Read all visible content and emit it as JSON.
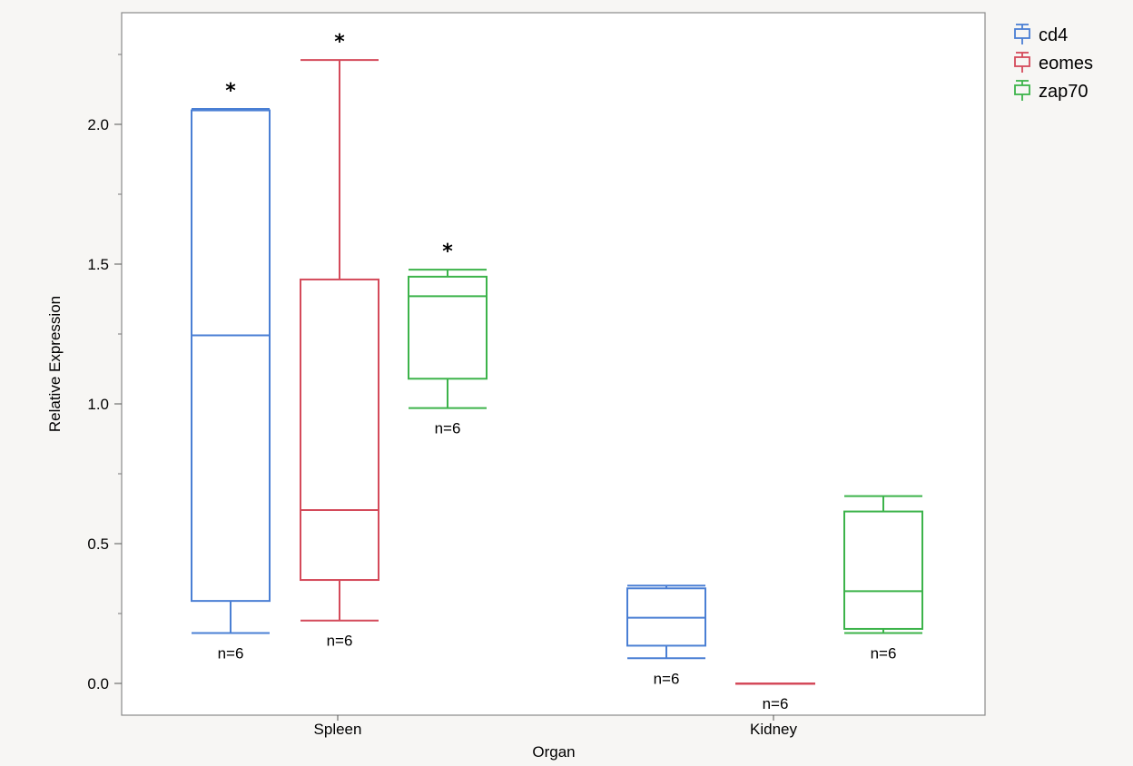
{
  "chart_data": {
    "type": "box",
    "xlabel": "Organ",
    "ylabel": "Relative Expression",
    "ylim": [
      -0.1,
      2.4
    ],
    "yticks": [
      0.0,
      0.5,
      1.0,
      1.5,
      2.0
    ],
    "ytick_labels": [
      "0.0",
      "0.5",
      "1.0",
      "1.5",
      "2.0"
    ],
    "categories": [
      "Spleen",
      "Kidney"
    ],
    "legend_position": "top-right, outside plot",
    "series": [
      {
        "name": "cd4",
        "color": "#4a7fd4",
        "boxes": [
          {
            "category": "Spleen",
            "min": 0.18,
            "q1": 0.295,
            "median": 1.245,
            "q3": 2.05,
            "max": 2.055,
            "n_label": "n=6",
            "significant": true
          },
          {
            "category": "Kidney",
            "min": 0.09,
            "q1": 0.135,
            "median": 0.235,
            "q3": 0.34,
            "max": 0.35,
            "n_label": "n=6",
            "significant": false
          }
        ]
      },
      {
        "name": "eomes",
        "color": "#d44a5a",
        "boxes": [
          {
            "category": "Spleen",
            "min": 0.225,
            "q1": 0.37,
            "median": 0.62,
            "q3": 1.445,
            "max": 2.23,
            "n_label": "n=6",
            "significant": true
          },
          {
            "category": "Kidney",
            "min": 0.0,
            "q1": 0.0,
            "median": 0.0,
            "q3": 0.0,
            "max": 0.0,
            "n_label": "n=6",
            "significant": false
          }
        ]
      },
      {
        "name": "zap70",
        "color": "#3cb34a",
        "boxes": [
          {
            "category": "Spleen",
            "min": 0.985,
            "q1": 1.09,
            "median": 1.385,
            "q3": 1.455,
            "max": 1.48,
            "n_label": "n=6",
            "significant": true
          },
          {
            "category": "Kidney",
            "min": 0.18,
            "q1": 0.195,
            "median": 0.33,
            "q3": 0.615,
            "max": 0.67,
            "n_label": "n=6",
            "significant": false
          }
        ]
      }
    ],
    "significance_marker": "*"
  }
}
